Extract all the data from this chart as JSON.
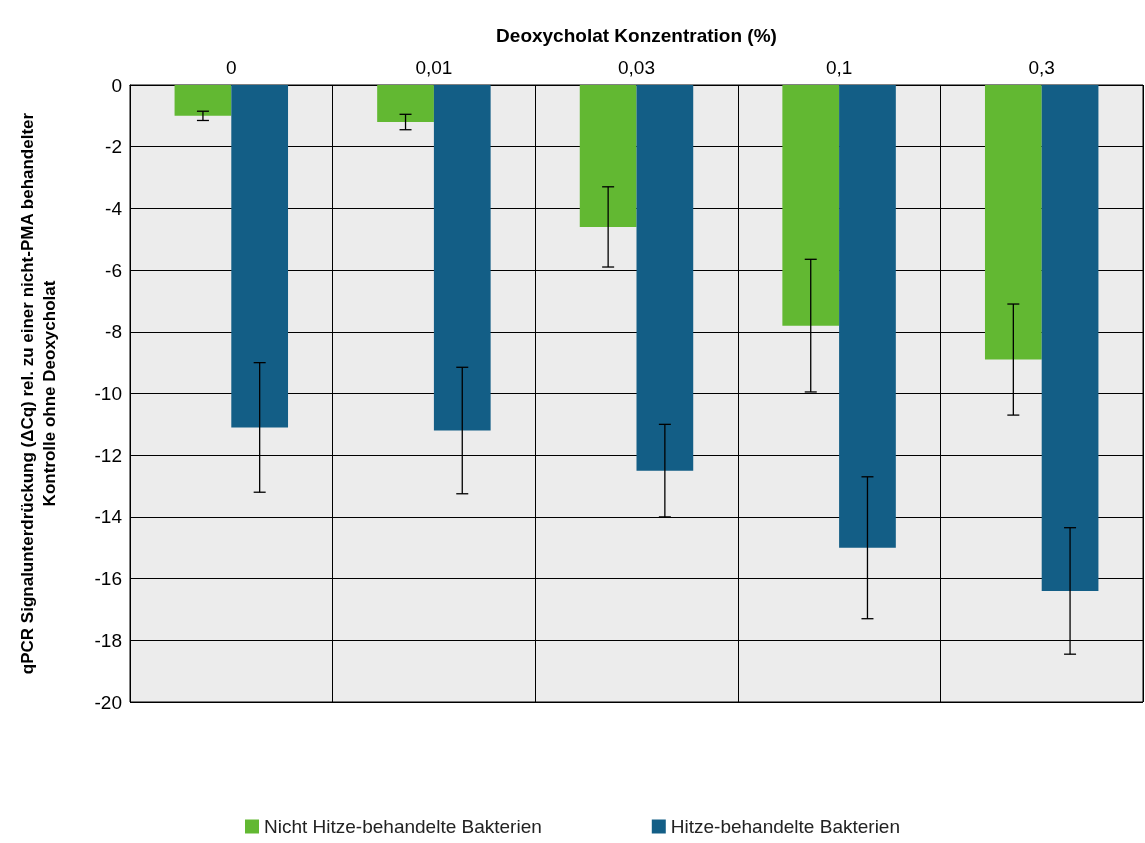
{
  "chart_data": {
    "type": "bar",
    "xlabel": "Deoxycholat Konzentration (%)",
    "ylabel": "qPCR Signalunterdrückung (ΔCq) rel. zu einer nicht-PMA behandelter\nKontrolle ohne Deoxycholat",
    "categories": [
      "0",
      "0,01",
      "0,03",
      "0,1",
      "0,3"
    ],
    "series": [
      {
        "name": "Nicht Hitze-behandelte Bakterien",
        "color": "#62b832",
        "values": [
          -1.0,
          -1.2,
          -4.6,
          -7.8,
          -8.9
        ],
        "errors": [
          0.15,
          0.25,
          1.3,
          2.15,
          1.8
        ]
      },
      {
        "name": "Hitze-behandelte Bakterien",
        "color": "#135e86",
        "values": [
          -11.1,
          -11.2,
          -12.5,
          -15.0,
          -16.4
        ],
        "errors": [
          2.1,
          2.05,
          1.5,
          2.3,
          2.05
        ]
      }
    ],
    "ylim": [
      -20,
      0
    ],
    "yticks": [
      -20,
      -18,
      -16,
      -14,
      -12,
      -10,
      -8,
      -6,
      -4,
      -2,
      0
    ],
    "grid": true,
    "legend": "bottom"
  }
}
